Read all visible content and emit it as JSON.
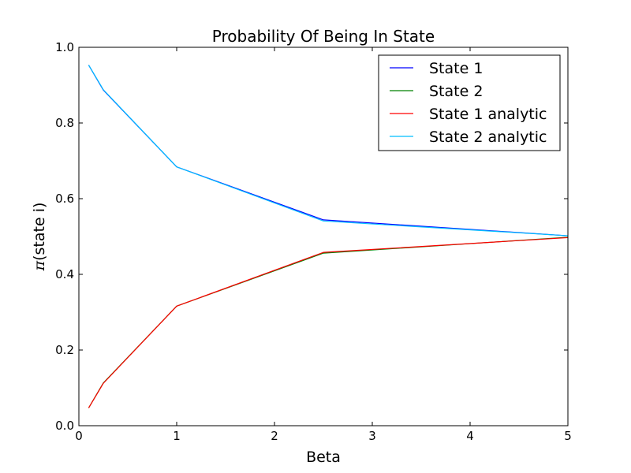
{
  "chart_data": {
    "type": "line",
    "title": "Probability Of Being In State",
    "xlabel": "Beta",
    "ylabel_symbol": "π",
    "ylabel": "(state i)",
    "xlim": [
      0,
      5
    ],
    "ylim": [
      0.0,
      1.0
    ],
    "x_ticks": [
      {
        "value": 0,
        "label": "0"
      },
      {
        "value": 1,
        "label": "1"
      },
      {
        "value": 2,
        "label": "2"
      },
      {
        "value": 3,
        "label": "3"
      },
      {
        "value": 4,
        "label": "4"
      },
      {
        "value": 5,
        "label": "5"
      }
    ],
    "y_ticks": [
      {
        "value": 0.0,
        "label": "0.0"
      },
      {
        "value": 0.2,
        "label": "0.2"
      },
      {
        "value": 0.4,
        "label": "0.4"
      },
      {
        "value": 0.6,
        "label": "0.6"
      },
      {
        "value": 0.8,
        "label": "0.8"
      },
      {
        "value": 1.0,
        "label": "1.0"
      }
    ],
    "grid": false,
    "legend_position": "top-right",
    "series": [
      {
        "name": "State 1",
        "color": "#0000ff",
        "x": [
          0.1,
          0.25,
          1.0,
          2.5,
          5.0
        ],
        "y": [
          0.953,
          0.887,
          0.684,
          0.544,
          0.502
        ]
      },
      {
        "name": "State 2",
        "color": "#008000",
        "x": [
          0.1,
          0.25,
          1.0,
          2.5,
          5.0
        ],
        "y": [
          0.047,
          0.113,
          0.316,
          0.456,
          0.498
        ]
      },
      {
        "name": "State 1 analytic",
        "color": "#ff0000",
        "x": [
          0.1,
          0.25,
          1.0,
          2.5,
          5.0
        ],
        "y": [
          0.047,
          0.112,
          0.316,
          0.458,
          0.497
        ]
      },
      {
        "name": "State 2 analytic",
        "color": "#00bfff",
        "x": [
          0.1,
          0.25,
          1.0,
          2.5,
          5.0
        ],
        "y": [
          0.953,
          0.888,
          0.684,
          0.541,
          0.502
        ]
      }
    ]
  }
}
